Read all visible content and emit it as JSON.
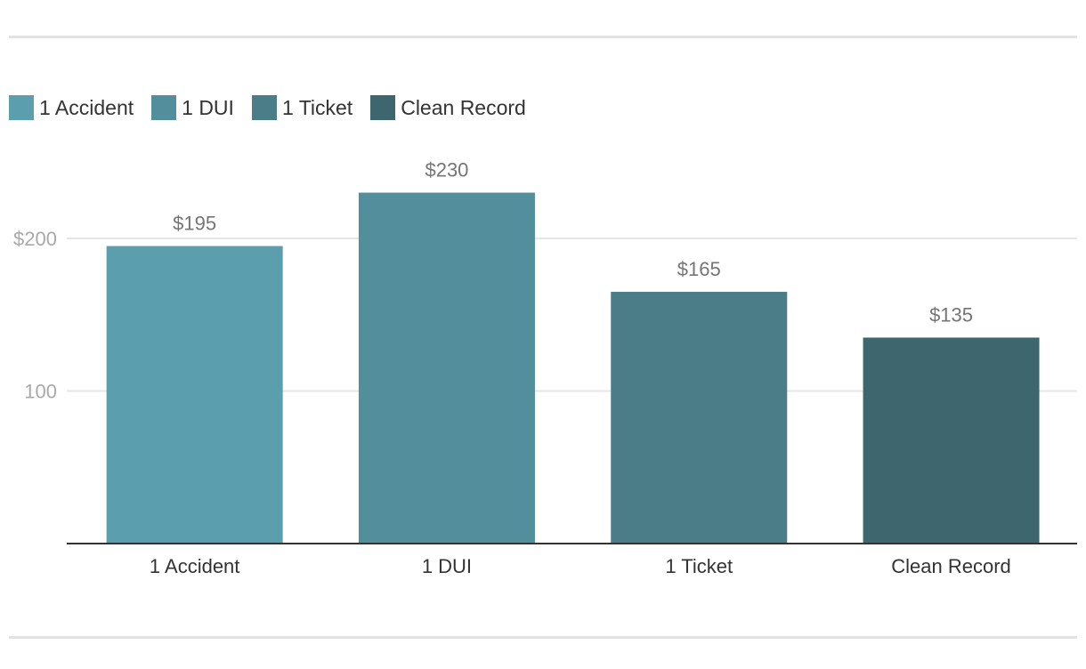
{
  "chart_data": {
    "type": "bar",
    "title": "",
    "xlabel": "",
    "ylabel": "",
    "categories": [
      "1 Accident",
      "1 DUI",
      "1 Ticket",
      "Clean Record"
    ],
    "values": [
      195,
      230,
      165,
      135
    ],
    "value_labels": [
      "$195",
      "$230",
      "$165",
      "$135"
    ],
    "colors": [
      "#5b9ead",
      "#528e9b",
      "#4a7d88",
      "#3d666f"
    ],
    "y_ticks": [
      {
        "value": 100,
        "label": "100"
      },
      {
        "value": 200,
        "label": "$200"
      }
    ],
    "ylim": [
      0,
      256
    ],
    "grid": true,
    "legend": {
      "placement": "top-left",
      "entries": [
        "1 Accident",
        "1 DUI",
        "1 Ticket",
        "Clean Record"
      ]
    }
  }
}
